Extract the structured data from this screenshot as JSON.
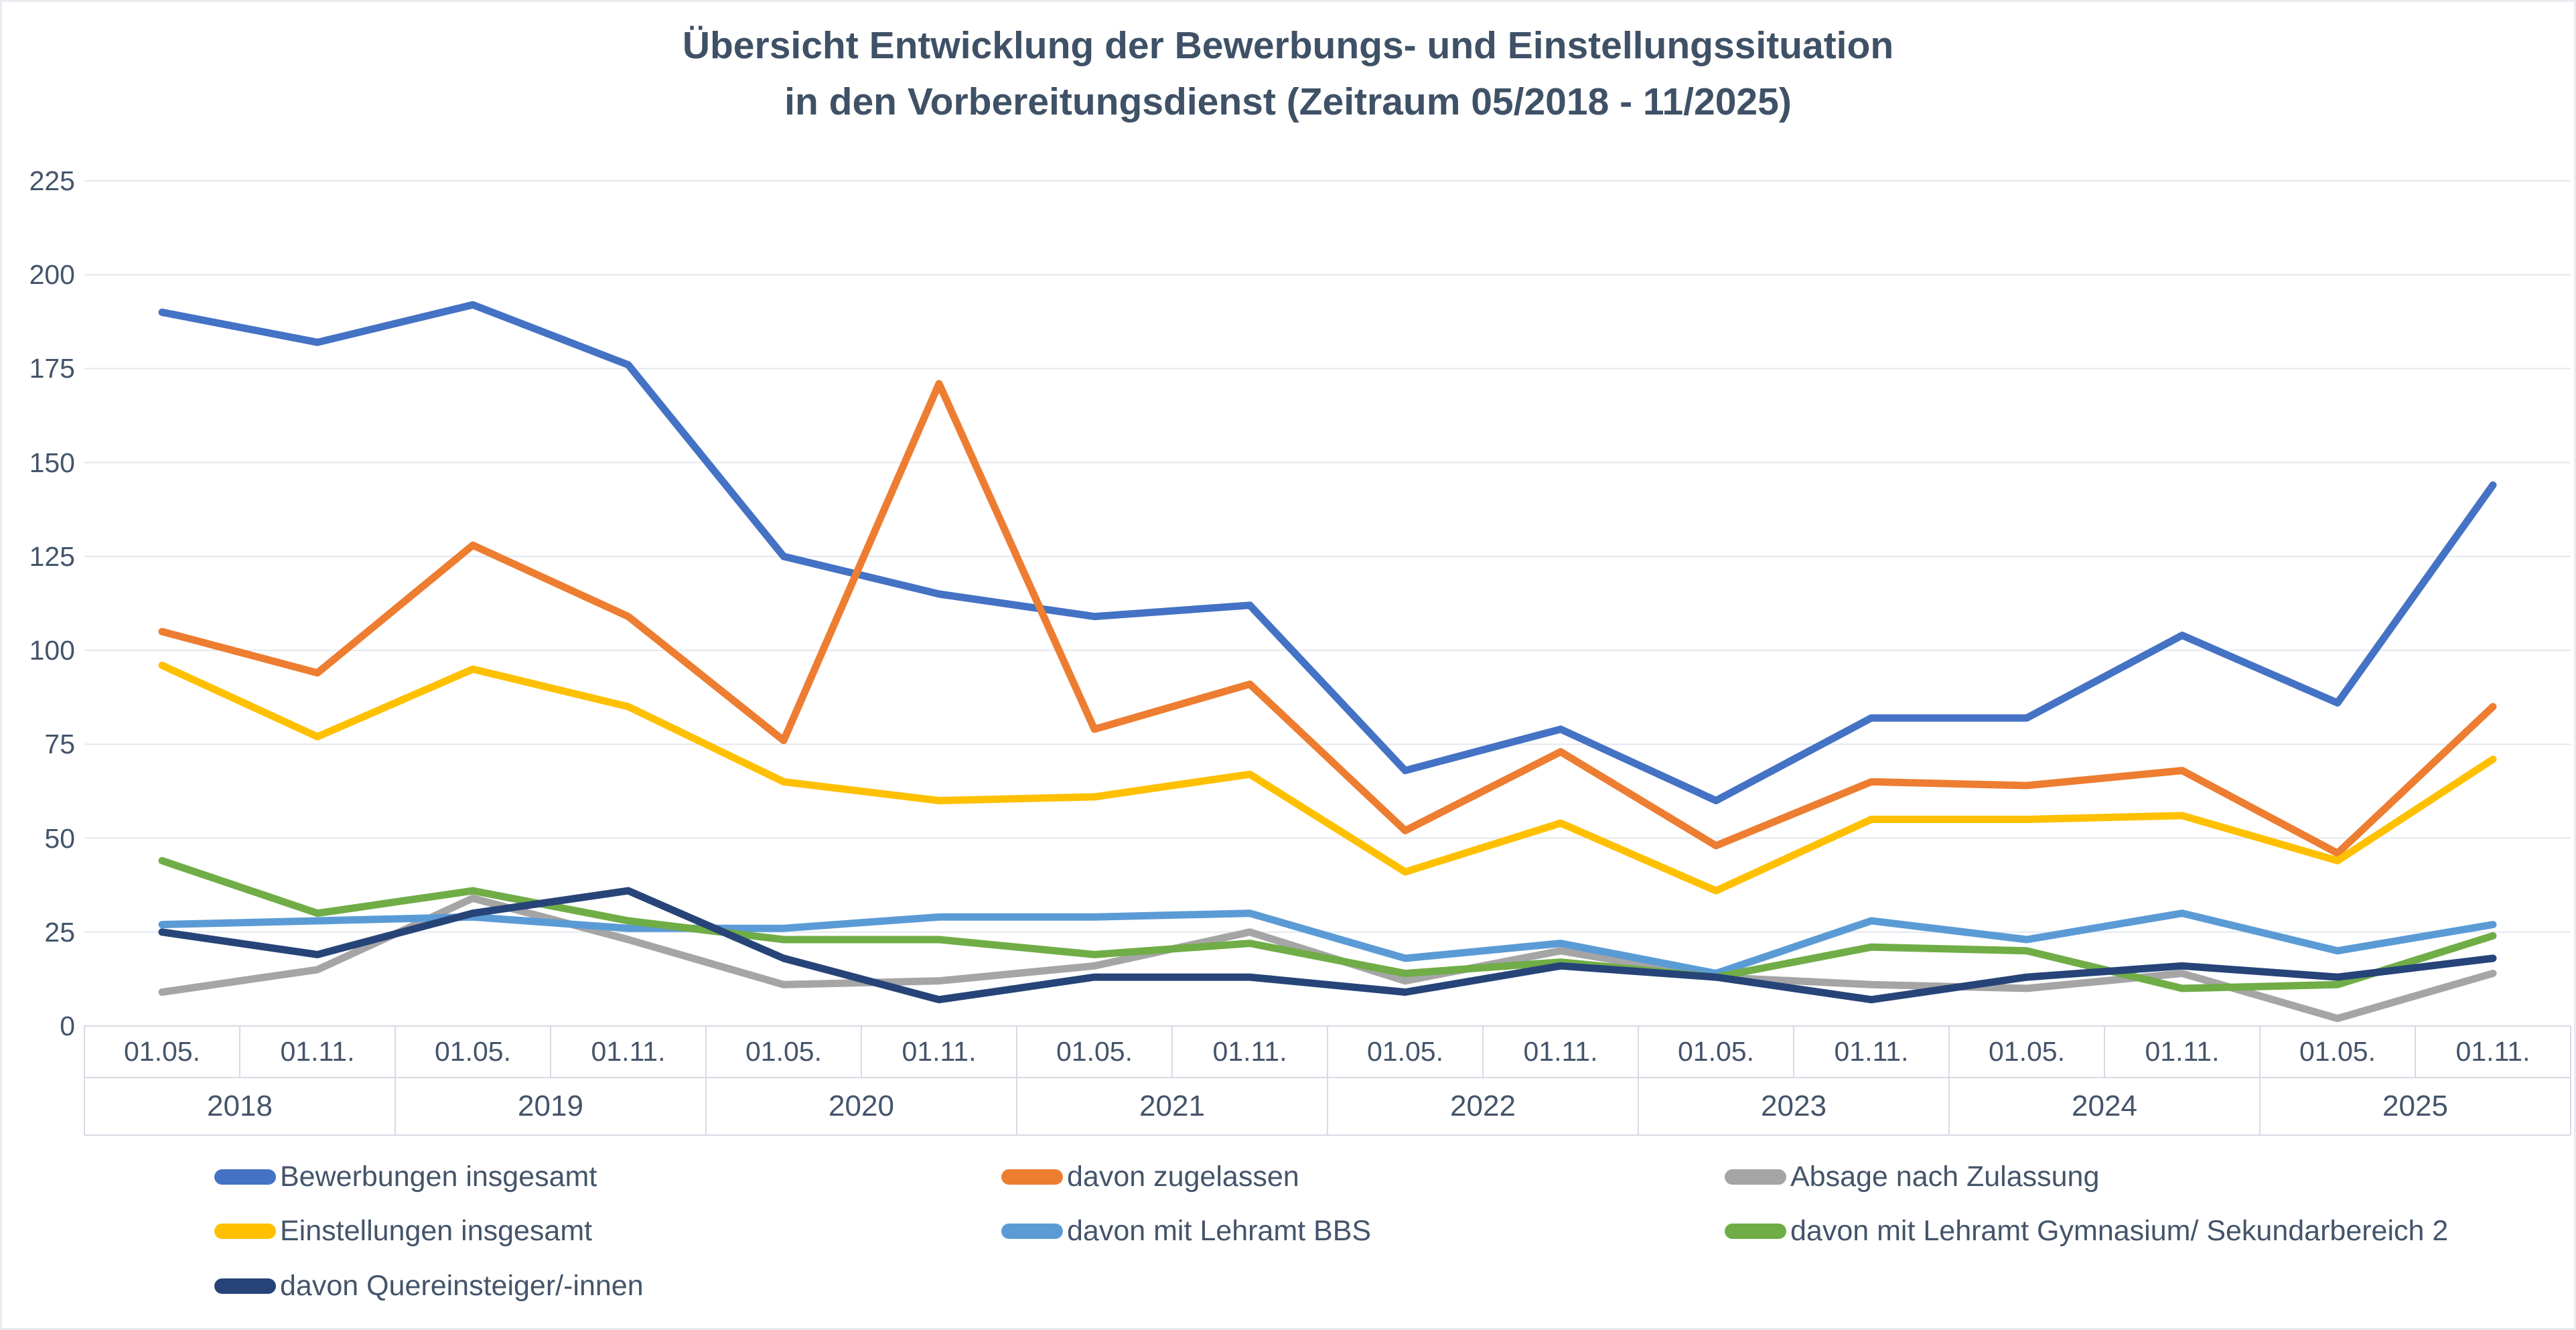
{
  "title": {
    "line1": "Übersicht Entwicklung der Bewerbungs- und Einstellungssituation",
    "line2": "in den Vorbereitungsdienst (Zeitraum 05/2018 - 11/2025)"
  },
  "text_color": "#44546A",
  "gridline_color": "#e3e7ee",
  "axis_line_color": "#d6dbe3",
  "chart_data": {
    "type": "line",
    "title": "Übersicht Entwicklung der Bewerbungs- und Einstellungssituation in den Vorbereitungsdienst (Zeitraum 05/2018 - 11/2025)",
    "x_period_labels": [
      "01.05.",
      "01.11.",
      "01.05.",
      "01.11.",
      "01.05.",
      "01.11.",
      "01.05.",
      "01.11.",
      "01.05.",
      "01.11.",
      "01.05.",
      "01.11.",
      "01.05.",
      "01.11.",
      "01.05.",
      "01.11."
    ],
    "x_year_labels": [
      "2018",
      "2019",
      "2020",
      "2021",
      "2022",
      "2023",
      "2024",
      "2025"
    ],
    "y_ticks": [
      0,
      25,
      50,
      75,
      100,
      125,
      150,
      175,
      200,
      225
    ],
    "ylim": [
      0,
      225
    ],
    "grid": true,
    "legend_position": "bottom",
    "series": [
      {
        "name": "Bewerbungen insgesamt",
        "color": "#4472C4",
        "values": [
          190,
          182,
          192,
          176,
          125,
          115,
          109,
          112,
          68,
          79,
          60,
          82,
          82,
          104,
          86,
          144
        ]
      },
      {
        "name": "davon zugelassen",
        "color": "#ED7D31",
        "values": [
          105,
          94,
          128,
          109,
          76,
          171,
          79,
          91,
          52,
          73,
          48,
          65,
          64,
          68,
          46,
          85
        ]
      },
      {
        "name": "Absage nach Zulassung",
        "color": "#A5A5A5",
        "values": [
          9,
          15,
          34,
          23,
          11,
          12,
          16,
          25,
          12,
          20,
          13,
          11,
          10,
          14,
          2,
          14
        ]
      },
      {
        "name": "Einstellungen insgesamt",
        "color": "#FFC000",
        "values": [
          96,
          77,
          95,
          85,
          65,
          60,
          61,
          67,
          41,
          54,
          36,
          55,
          55,
          56,
          44,
          71
        ]
      },
      {
        "name": "davon mit Lehramt BBS",
        "color": "#5B9BD5",
        "values": [
          27,
          28,
          29,
          26,
          26,
          29,
          29,
          30,
          18,
          22,
          14,
          28,
          23,
          30,
          20,
          27
        ]
      },
      {
        "name": "davon mit Lehramt Gymnasium/ Sekundarbereich 2",
        "color": "#70AD47",
        "values": [
          44,
          30,
          36,
          28,
          23,
          23,
          19,
          22,
          14,
          17,
          13,
          21,
          20,
          10,
          11,
          24
        ]
      },
      {
        "name": "davon Quereinsteiger/-innen",
        "color": "#264478",
        "values": [
          25,
          19,
          30,
          36,
          18,
          7,
          13,
          13,
          9,
          16,
          13,
          7,
          13,
          16,
          13,
          18
        ]
      }
    ]
  }
}
